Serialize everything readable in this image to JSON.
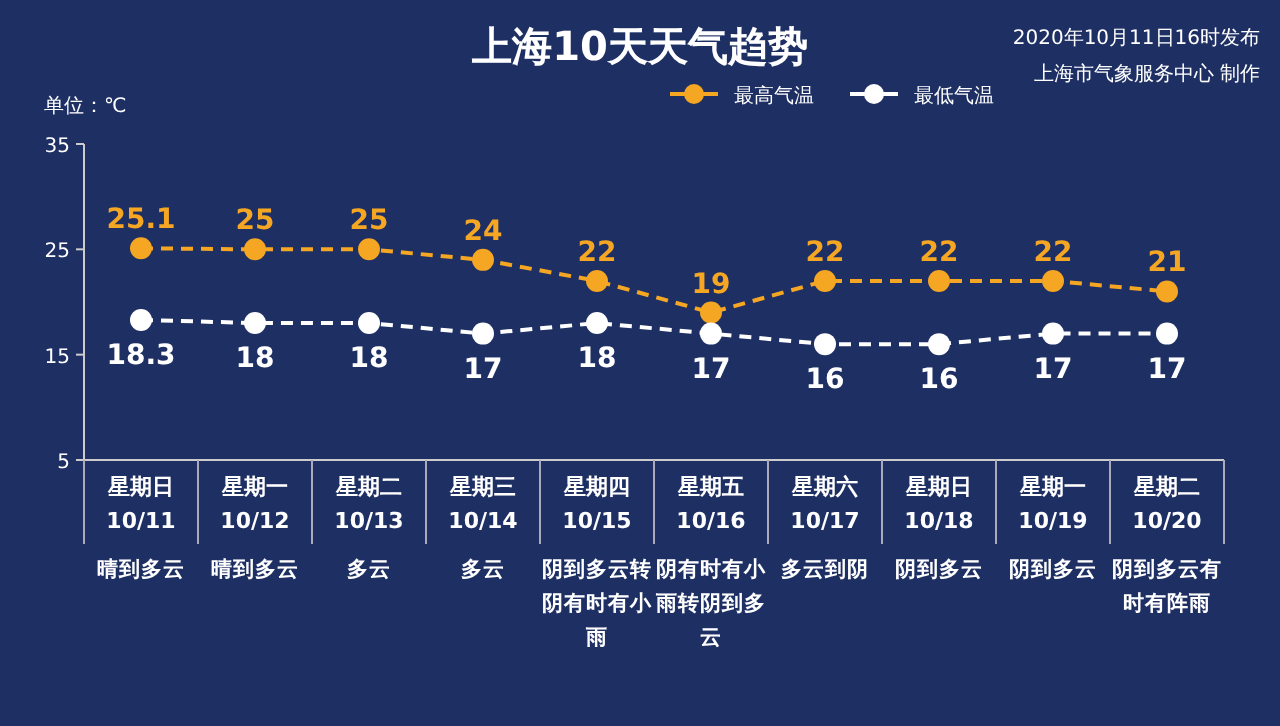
{
  "chart_data": {
    "type": "line",
    "title": "上海10天天气趋势",
    "ylabel": "单位：℃",
    "categories": [
      "星期日\n10/11",
      "星期一\n10/12",
      "星期二\n10/13",
      "星期三\n10/14",
      "星期四\n10/15",
      "星期五\n10/16",
      "星期六\n10/17",
      "星期日\n10/18",
      "星期一\n10/19",
      "星期二\n10/20"
    ],
    "series": [
      {
        "name": "最高气温",
        "color": "#f5a623",
        "values": [
          25.1,
          25,
          25,
          24,
          22,
          19,
          22,
          22,
          22,
          21
        ]
      },
      {
        "name": "最低气温",
        "color": "#ffffff",
        "values": [
          18.3,
          18,
          18,
          17,
          18,
          17,
          16,
          16,
          17,
          17
        ]
      }
    ],
    "ylim": [
      5,
      35
    ],
    "yticks": [
      5,
      15,
      25,
      35
    ],
    "grid": false,
    "legend": "top right",
    "marker": "circle",
    "line_style": "dashed",
    "data_labels": true,
    "annotations": [
      "2020年10月11日16时发布",
      "上海市气象服务中心 制作",
      "晴到多云",
      "晴到多云",
      "多云",
      "多云",
      "阴到多云转阴有时有小雨",
      "阴有时有小雨转阴到多云",
      "多云到阴",
      "阴到多云",
      "阴到多云",
      "阴到多云有时有阵雨"
    ]
  }
}
